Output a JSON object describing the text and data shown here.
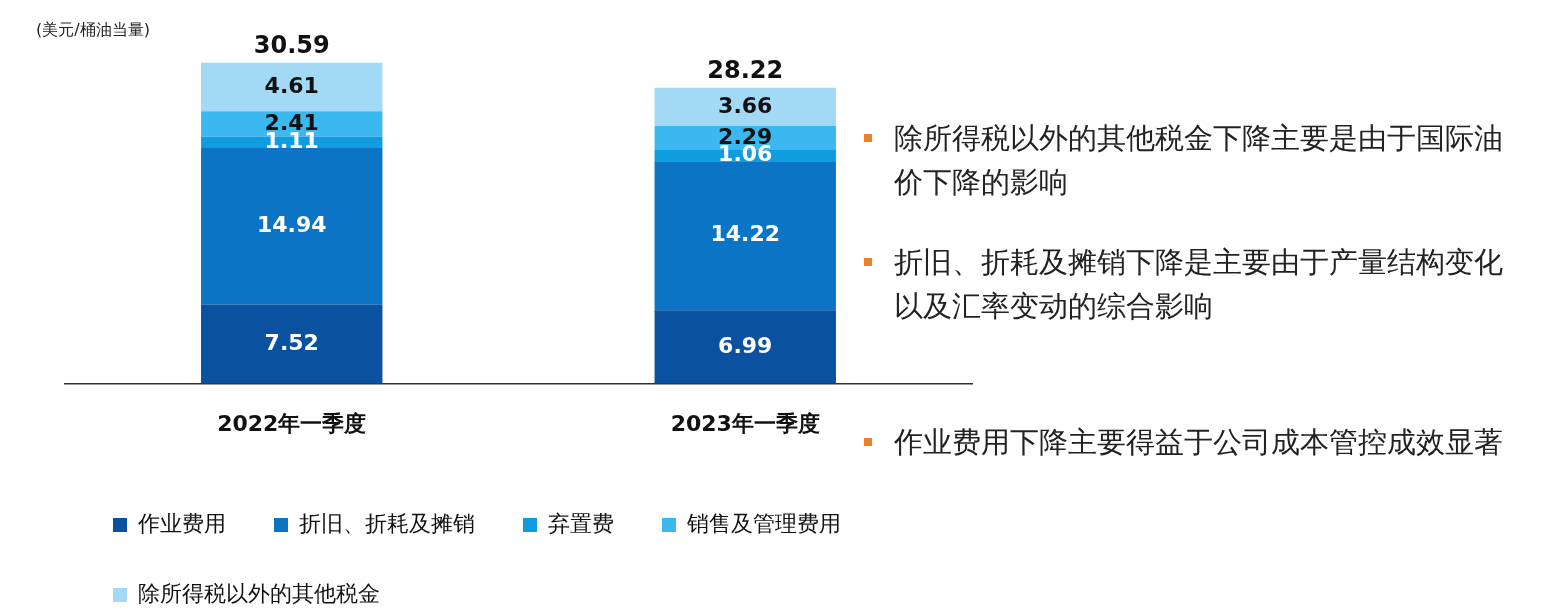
{
  "chart_data": {
    "type": "bar",
    "stacked": true,
    "ylabel": "(美元/桶油当量)",
    "categories": [
      "2022年一季度",
      "2023年一季度"
    ],
    "series": [
      {
        "name": "作业费用",
        "color": "#0a52a0",
        "values": [
          7.52,
          6.99
        ]
      },
      {
        "name": "折旧、折耗及摊销",
        "color": "#0b74c4",
        "values": [
          14.94,
          14.22
        ]
      },
      {
        "name": "弃置费",
        "color": "#109de0",
        "values": [
          1.11,
          1.06
        ]
      },
      {
        "name": "销售及管理费用",
        "color": "#3ab8ef",
        "values": [
          2.41,
          2.29
        ]
      },
      {
        "name": "除所得税以外的其他税金",
        "color": "#a3d9f5",
        "values": [
          4.61,
          3.66
        ]
      }
    ],
    "data_labels": true,
    "totals": [
      "30.59",
      "28.22"
    ],
    "legend": "bottom",
    "grid": false,
    "annotations": [
      "除所得税以外的其他税金下降主要是由于国际油价下降的影响",
      "折旧、折耗及摊销下降是主要由于产量结构变化以及汇率变动的综合影响",
      "作业费用下降主要得益于公司成本管控成效显著"
    ]
  }
}
